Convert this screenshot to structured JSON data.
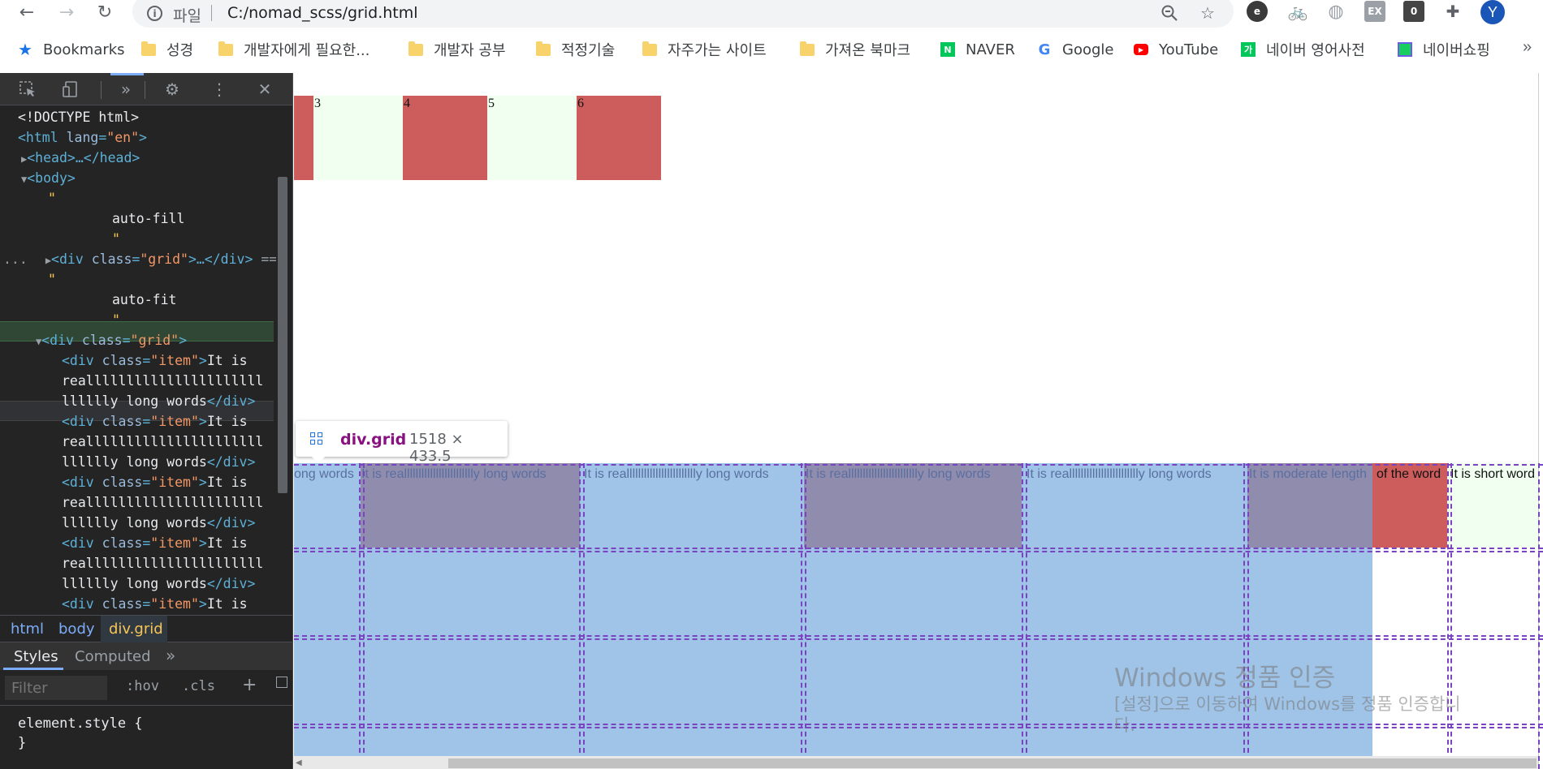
{
  "browser": {
    "omnibox": {
      "file_label": "파일",
      "url": "C:/nomad_scss/grid.html"
    },
    "avatar_letter": "Y",
    "ext_labels": {
      "ex": "EX",
      "zero": "0"
    }
  },
  "bookmarks": [
    {
      "label": "Bookmarks",
      "icon": "star"
    },
    {
      "label": "성경",
      "icon": "folder"
    },
    {
      "label": "개발자에게 필요한...",
      "icon": "folder"
    },
    {
      "label": "개발자 공부",
      "icon": "folder"
    },
    {
      "label": "적정기술",
      "icon": "folder"
    },
    {
      "label": "자주가는 사이트",
      "icon": "folder"
    },
    {
      "label": "가져온 북마크",
      "icon": "folder"
    },
    {
      "label": "NAVER",
      "icon": "naver"
    },
    {
      "label": "Google",
      "icon": "google"
    },
    {
      "label": "YouTube",
      "icon": "youtube"
    },
    {
      "label": "네이버 영어사전",
      "icon": "naver-dict"
    },
    {
      "label": "네이버쇼핑",
      "icon": "naver-shop"
    }
  ],
  "devtools": {
    "more_dots": "...",
    "elements": {
      "doctype": "<!DOCTYPE html>",
      "html_open": "<html ",
      "lang_attr": "lang",
      "lang_val": "\"en\"",
      "head": "<head>…</head>",
      "body": "<body>",
      "quote": "\"",
      "auto_fill": "auto-fill",
      "auto_fit": "auto-fit",
      "div_grid_selected": "<div ",
      "class_attr": "class",
      "grid_val": "\"grid\"",
      "collapsed_tail": ">…</div>",
      "selected_marker": "==",
      "item_val": "\"item\"",
      "item_text_1": "It is",
      "item_text_2": "reallllllllllllllllllllll",
      "item_text_3": "lllllly long words",
      "close_div": "</div>"
    },
    "crumbs": [
      "html",
      "body",
      "div.grid"
    ],
    "style_tabs": [
      "Styles",
      "Computed"
    ],
    "filter_placeholder": "Filter",
    "hov": ":hov",
    "cls": ".cls",
    "rule_selector": "element.style {",
    "rule_close": "}"
  },
  "page": {
    "top_boxes": [
      "3",
      "4",
      "5",
      "6"
    ],
    "tooltip": {
      "name": "div.grid",
      "size": "1518 × 433.5"
    },
    "grid_texts": [
      "ong words",
      "It is realllllllllllllllllllllllly long words",
      "It is realllllllllllllllllllllllly long words",
      "It is realllllllllllllllllllllllly long words",
      "It is realllllllllllllllllllllllly long words",
      "It is moderate length",
      "of the word",
      "It is short word"
    ],
    "watermark": {
      "title": "Windows 정품 인증",
      "subtitle_1": "[설정]으로 이동하여 Windows를 정품 인증합니",
      "subtitle_2": "다."
    }
  },
  "colors": {
    "indianred": "#cd5c5c",
    "honeydew": "#f0fff0",
    "grid_highlight": "#9fc4e7",
    "grid_line": "#7a44c0"
  }
}
